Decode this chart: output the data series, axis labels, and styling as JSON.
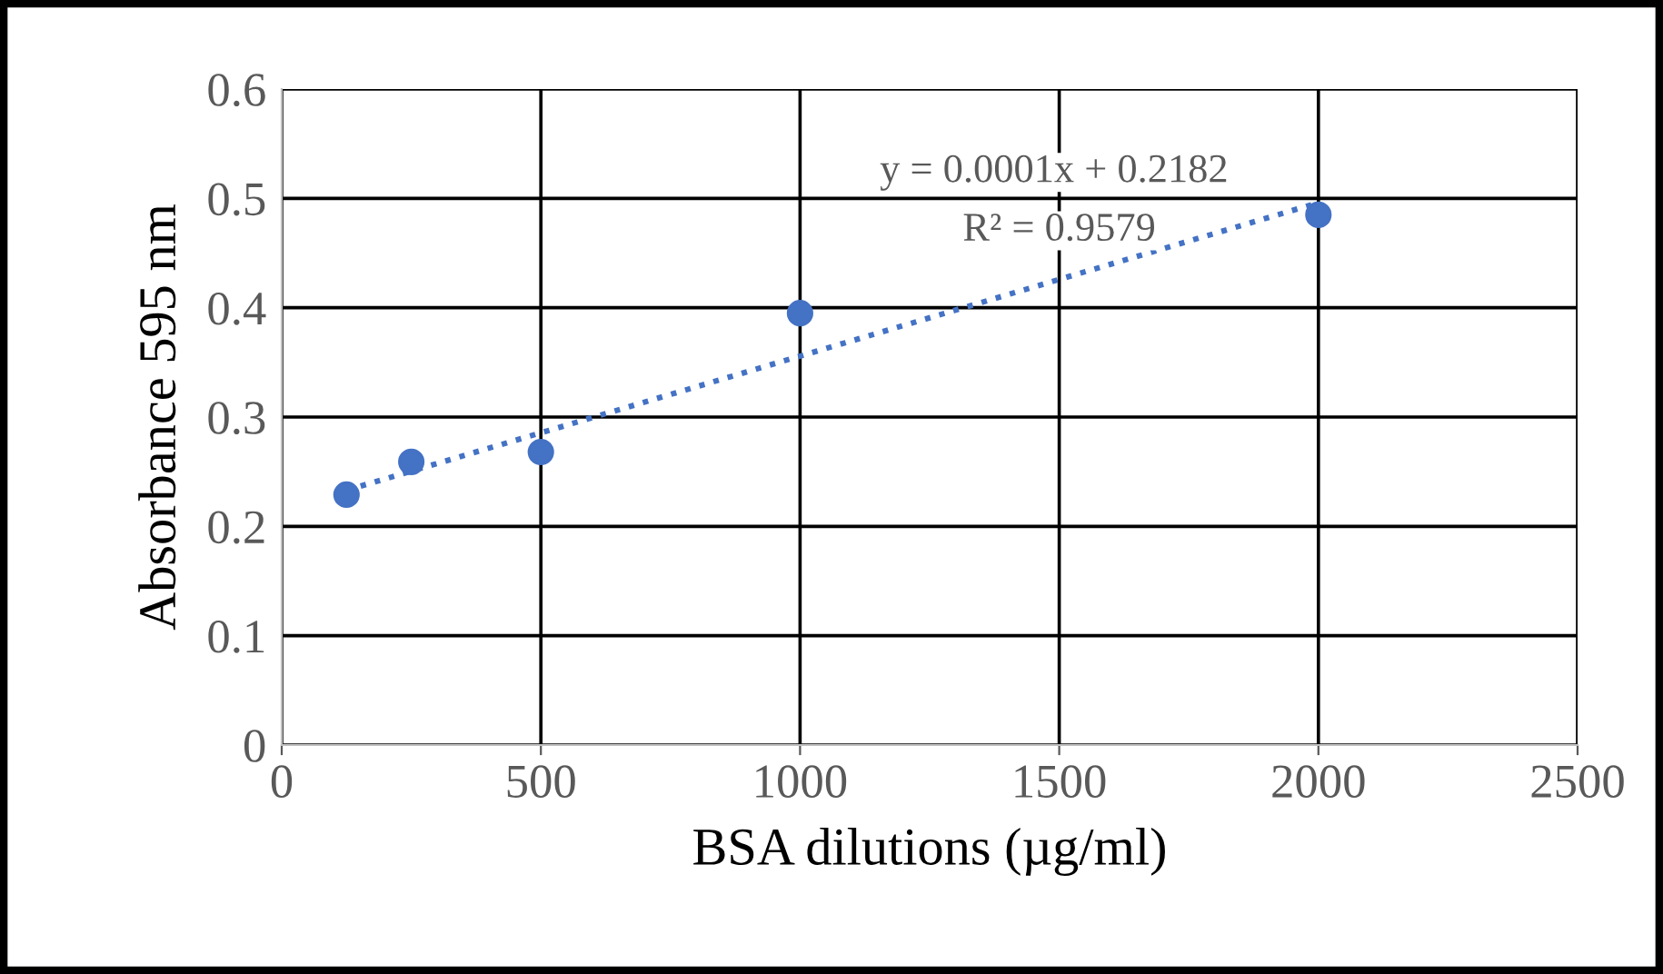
{
  "chart_data": {
    "type": "scatter",
    "xlabel": "BSA dilutions (µg/ml)",
    "ylabel": "Absorbance 595 nm",
    "series": [
      {
        "color": "#4472c4",
        "x": [
          125,
          250,
          500,
          1000,
          2000
        ],
        "values": [
          0.229,
          0.259,
          0.268,
          0.395,
          0.485
        ]
      },
      {
        "type": "line",
        "color": "#4472c4",
        "x": [
          125,
          2000
        ],
        "values": [
          0.233,
          0.496
        ],
        "line_style": "dotted",
        "marker": "none"
      }
    ],
    "annotations": [
      "y = 0.0001x + 0.2182",
      "R² = 0.9579"
    ],
    "xlim": [
      0,
      2500
    ],
    "xticks": [
      0,
      500,
      1000,
      1500,
      2000,
      2500
    ],
    "ylim": [
      0,
      0.6
    ],
    "yticks": [
      0,
      0.1,
      0.2,
      0.3,
      0.4,
      0.5,
      0.6
    ],
    "grid": true,
    "marker": "circle"
  }
}
